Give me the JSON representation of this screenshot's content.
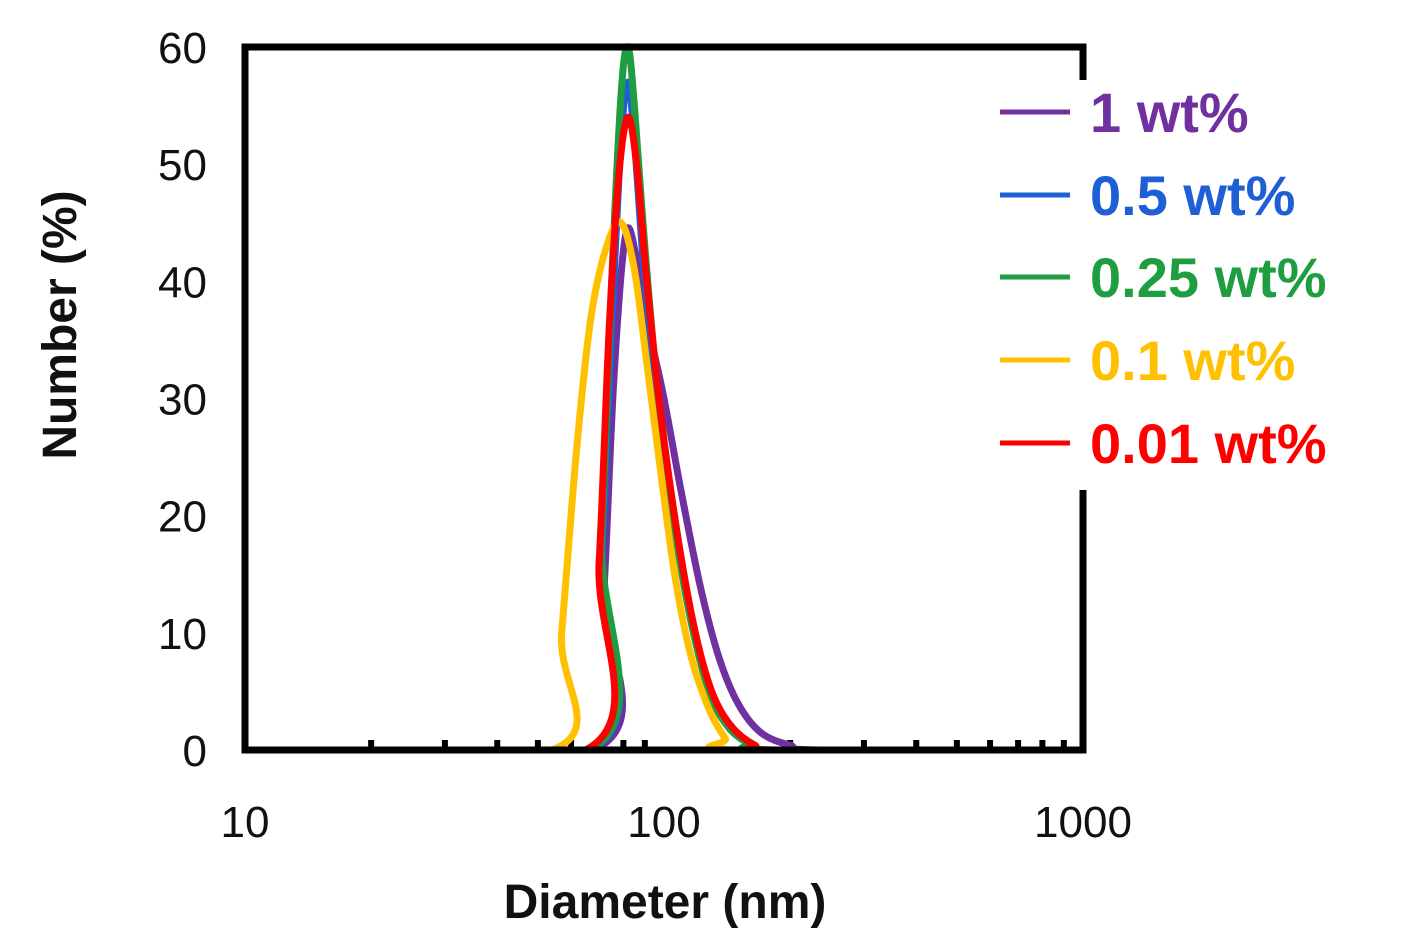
{
  "chart_data": {
    "type": "line",
    "xlabel": "Diameter (nm)",
    "ylabel": "Number (%)",
    "x_scale": "log",
    "xlim": [
      10,
      1000
    ],
    "ylim": [
      0,
      60
    ],
    "x_ticks": [
      "10",
      "100",
      "1000"
    ],
    "y_ticks": [
      "0",
      "10",
      "20",
      "30",
      "40",
      "50",
      "60"
    ],
    "grid": false,
    "legend_position": "top-right",
    "series": [
      {
        "name": "1 wt%",
        "color": "#7030a0",
        "points": [
          [
            10,
            0
          ],
          [
            68,
            0
          ],
          [
            72,
            14
          ],
          [
            76,
            32
          ],
          [
            81,
            44
          ],
          [
            86,
            42
          ],
          [
            92,
            36
          ],
          [
            100,
            30
          ],
          [
            110,
            22
          ],
          [
            122,
            14
          ],
          [
            135,
            8
          ],
          [
            150,
            4
          ],
          [
            170,
            1.5
          ],
          [
            200,
            0.4
          ],
          [
            240,
            0
          ],
          [
            1000,
            0
          ]
        ]
      },
      {
        "name": "0.5 wt%",
        "color": "#1f5fd6",
        "points": [
          [
            10,
            0
          ],
          [
            67,
            0
          ],
          [
            71,
            16
          ],
          [
            75,
            36
          ],
          [
            79,
            52
          ],
          [
            82,
            57
          ],
          [
            85,
            52
          ],
          [
            90,
            40
          ],
          [
            97,
            29
          ],
          [
            106,
            19
          ],
          [
            116,
            11
          ],
          [
            128,
            5.5
          ],
          [
            142,
            2.2
          ],
          [
            160,
            0.6
          ],
          [
            180,
            0
          ],
          [
            1000,
            0
          ]
        ]
      },
      {
        "name": "0.25 wt%",
        "color": "#1e9e40",
        "points": [
          [
            10,
            0
          ],
          [
            67,
            0
          ],
          [
            71,
            18
          ],
          [
            75,
            40
          ],
          [
            79,
            56
          ],
          [
            82,
            60
          ],
          [
            85,
            55
          ],
          [
            90,
            43
          ],
          [
            97,
            30
          ],
          [
            106,
            19
          ],
          [
            116,
            11
          ],
          [
            128,
            5
          ],
          [
            142,
            2
          ],
          [
            160,
            0.5
          ],
          [
            180,
            0
          ],
          [
            1000,
            0
          ]
        ]
      },
      {
        "name": "0.1 wt%",
        "color": "#ffc000",
        "points": [
          [
            10,
            0
          ],
          [
            54,
            0
          ],
          [
            57,
            10
          ],
          [
            62,
            26
          ],
          [
            67,
            37
          ],
          [
            73,
            43
          ],
          [
            79,
            45
          ],
          [
            85,
            41
          ],
          [
            91,
            33
          ],
          [
            98,
            24
          ],
          [
            106,
            15
          ],
          [
            116,
            8
          ],
          [
            128,
            3.5
          ],
          [
            140,
            1
          ],
          [
            150,
            0
          ],
          [
            1000,
            0
          ]
        ]
      },
      {
        "name": "0.01 wt%",
        "color": "#ff0000",
        "points": [
          [
            10,
            0
          ],
          [
            65,
            0
          ],
          [
            70,
            16
          ],
          [
            74,
            36
          ],
          [
            78,
            49
          ],
          [
            82,
            54
          ],
          [
            86,
            50
          ],
          [
            91,
            40
          ],
          [
            98,
            29
          ],
          [
            107,
            19
          ],
          [
            118,
            10.5
          ],
          [
            130,
            5
          ],
          [
            145,
            2
          ],
          [
            165,
            0.4
          ],
          [
            185,
            0
          ],
          [
            1000,
            0
          ]
        ]
      }
    ]
  }
}
